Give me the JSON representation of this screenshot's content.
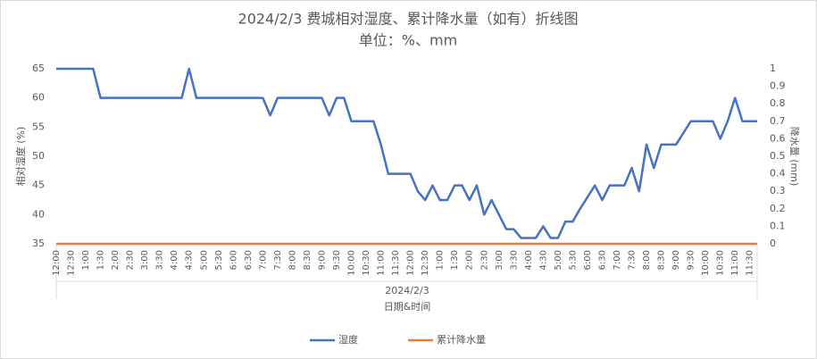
{
  "chart_data": {
    "type": "line",
    "title": "2024/2/3 费城相对湿度、累计降水量（如有）折线图",
    "subtitle": "单位：%、mm",
    "x_group_label": "2024/2/3",
    "x_label": "日期&时间",
    "y_label": "相对湿度 (%)",
    "y2_label": "降水量 (mm)",
    "categories": [
      "12:00",
      null,
      "12:30",
      null,
      "1:00",
      null,
      "1:30",
      null,
      "2:00",
      null,
      "2:30",
      null,
      "3:00",
      null,
      "3:30",
      null,
      "4:00",
      null,
      "4:30",
      null,
      "5:00",
      null,
      "5:30",
      null,
      "6:00",
      null,
      "6:30",
      null,
      "7:00",
      null,
      "7:30",
      null,
      "8:00",
      null,
      "8:30",
      null,
      "9:00",
      null,
      "9:30",
      null,
      "10:00",
      null,
      "10:30",
      null,
      "11:00",
      null,
      "11:30",
      null,
      "12:00",
      null,
      "12:30",
      null,
      "1:00",
      null,
      "1:30",
      null,
      "2:00",
      null,
      "2:30",
      null,
      "3:00",
      null,
      "3:30",
      null,
      "4:00",
      null,
      "4:30",
      null,
      "5:00",
      null,
      "5:30",
      null,
      "6:00",
      null,
      "6:30",
      null,
      "7:00",
      null,
      "7:30",
      null,
      "8:00",
      null,
      "8:30",
      null,
      "9:00",
      null,
      "9:30",
      null,
      "10:00",
      null,
      "10:30",
      null,
      "11:00",
      null,
      "11:30",
      null
    ],
    "series": [
      {
        "name": "湿度",
        "color": "#4472c4",
        "values": [
          65,
          65,
          65,
          65,
          65,
          65,
          60,
          60,
          60,
          60,
          60,
          60,
          60,
          60,
          60,
          60,
          60,
          60,
          65,
          60,
          60,
          60,
          60,
          60,
          60,
          60,
          60,
          60,
          60,
          57,
          60,
          60,
          60,
          60,
          60,
          60,
          60,
          57,
          60,
          60,
          56,
          56,
          56,
          56,
          52,
          47,
          47,
          47,
          47,
          44,
          42.5,
          45,
          42.5,
          42.5,
          45,
          45,
          42.5,
          45,
          40,
          42.5,
          40,
          37.5,
          37.5,
          36,
          36,
          36,
          38,
          36,
          36,
          38.8,
          38.8,
          41,
          43,
          45,
          42.5,
          45,
          45,
          45,
          48,
          44,
          52,
          48,
          52,
          52,
          52,
          54,
          56,
          56,
          56,
          56,
          53,
          56,
          60,
          56,
          56,
          56
        ]
      },
      {
        "name": "累计降水量",
        "color": "#ed7d31",
        "axis": "y2",
        "values": [
          0,
          0,
          0,
          0,
          0,
          0,
          0,
          0,
          0,
          0,
          0,
          0,
          0,
          0,
          0,
          0,
          0,
          0,
          0,
          0,
          0,
          0,
          0,
          0,
          0,
          0,
          0,
          0,
          0,
          0,
          0,
          0,
          0,
          0,
          0,
          0,
          0,
          0,
          0,
          0,
          0,
          0,
          0,
          0,
          0,
          0,
          0,
          0,
          0,
          0,
          0,
          0,
          0,
          0,
          0,
          0,
          0,
          0,
          0,
          0,
          0,
          0,
          0,
          0,
          0,
          0,
          0,
          0,
          0,
          0,
          0,
          0,
          0,
          0,
          0,
          0,
          0,
          0,
          0,
          0,
          0,
          0,
          0,
          0,
          0,
          0,
          0,
          0,
          0,
          0,
          0,
          0,
          0,
          0,
          0,
          0
        ]
      }
    ],
    "ylim": [
      35,
      65
    ],
    "yticks": [
      35,
      40,
      45,
      50,
      55,
      60,
      65
    ],
    "y2lim": [
      0,
      1
    ],
    "y2ticks": [
      0,
      0.1,
      0.2,
      0.3,
      0.4,
      0.5,
      0.6,
      0.7,
      0.8,
      0.9,
      1
    ],
    "grid": false,
    "legend": "bottom"
  }
}
